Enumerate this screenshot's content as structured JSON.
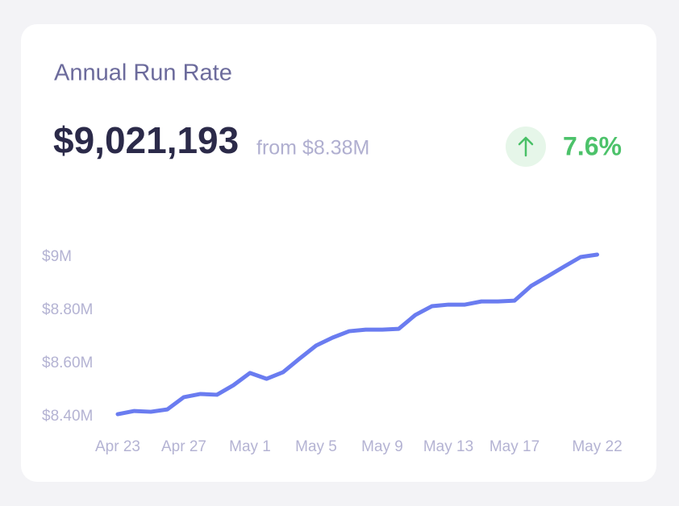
{
  "card": {
    "title": "Annual Run Rate",
    "value": "$9,021,193",
    "comparison": "from $8.38M",
    "change": "7.6%"
  },
  "chart_data": {
    "type": "line",
    "categories": [
      "Apr 23",
      null,
      null,
      null,
      "Apr 27",
      null,
      null,
      null,
      "May 1",
      null,
      null,
      null,
      "May 5",
      null,
      null,
      null,
      "May 9",
      null,
      null,
      null,
      "May 13",
      null,
      null,
      null,
      "May 17",
      null,
      null,
      null,
      null,
      "May 22"
    ],
    "series": [
      {
        "color": "#6a7cf0",
        "values": [
          8409000,
          8421000,
          8418000,
          8427000,
          8473000,
          8485000,
          8482000,
          8518000,
          8564000,
          8542000,
          8567000,
          8618000,
          8667000,
          8697000,
          8721000,
          8727000,
          8727000,
          8730000,
          8782000,
          8815000,
          8821000,
          8821000,
          8833000,
          8833000,
          8836000,
          8891000,
          8927000,
          8964000,
          9000000,
          9009000
        ]
      }
    ],
    "ylim": [
      8400000,
      9000000
    ],
    "yticks": [
      {
        "value": 8400000,
        "label": "$8.40M"
      },
      {
        "value": 8600000,
        "label": "$8.60M"
      },
      {
        "value": 8800000,
        "label": "$8.80M"
      },
      {
        "value": 9000000,
        "label": "$9M"
      }
    ]
  }
}
